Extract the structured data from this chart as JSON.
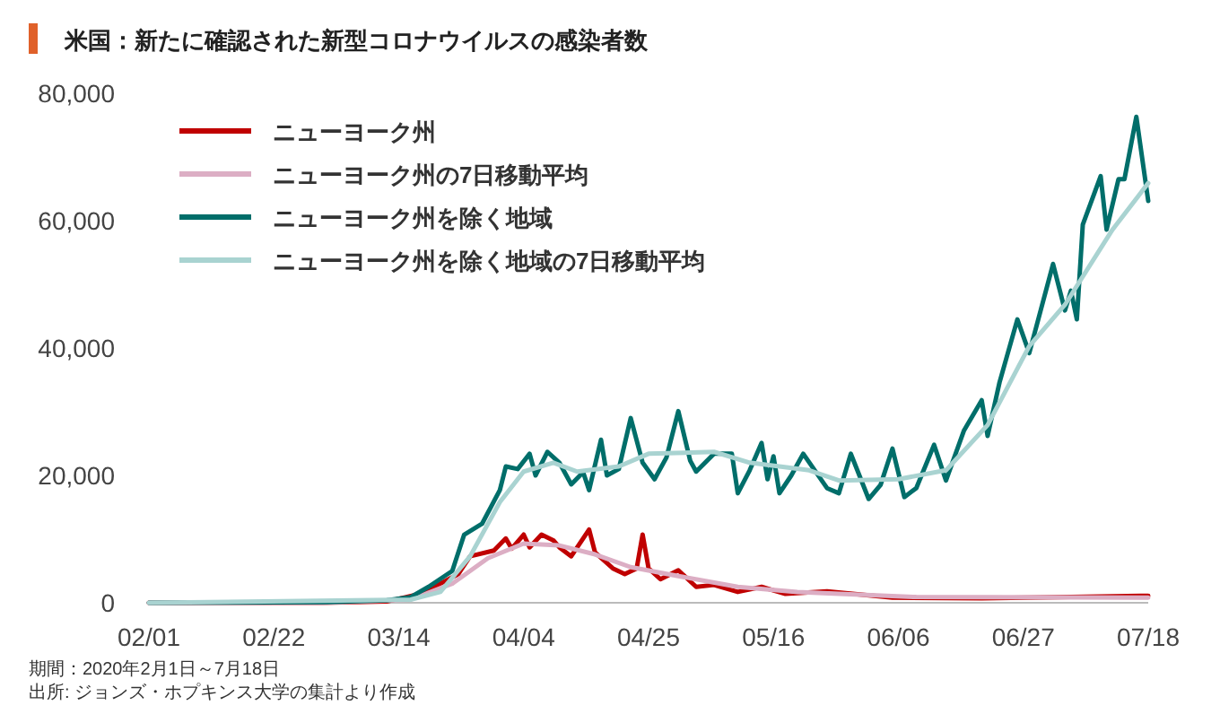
{
  "chart_data": {
    "type": "line",
    "title": "米国：新たに確認された新型コロナウイルスの感染者数",
    "annotations": [
      "期間：2020年2月1日～7月18日",
      "出所: ジョンズ・ホプキンス大学の集計より作成"
    ],
    "xlim": [
      "2020-02-01",
      "2020-07-18"
    ],
    "xticks": [
      {
        "value": "2020-02-01",
        "label": "02/01"
      },
      {
        "value": "2020-02-22",
        "label": "02/22"
      },
      {
        "value": "2020-03-14",
        "label": "03/14"
      },
      {
        "value": "2020-04-04",
        "label": "04/04"
      },
      {
        "value": "2020-04-25",
        "label": "04/25"
      },
      {
        "value": "2020-05-16",
        "label": "05/16"
      },
      {
        "value": "2020-06-06",
        "label": "06/06"
      },
      {
        "value": "2020-06-27",
        "label": "06/27"
      },
      {
        "value": "2020-07-18",
        "label": "07/18"
      }
    ],
    "ylim": [
      0,
      80000
    ],
    "yticks": [
      0,
      {
        "value": 20000,
        "label": "20,000"
      },
      {
        "value": 40000,
        "label": "40,000"
      },
      {
        "value": 60000,
        "label": "60,000"
      },
      {
        "value": 80000,
        "label": "80,000"
      }
    ],
    "grid": false,
    "legend": "top left",
    "marker": "none",
    "line_style": "solid",
    "series": [
      {
        "name": "ニューヨーク州",
        "color": "#c00000",
        "x": [
          "2020-02-01",
          "2020-03-01",
          "2020-03-12",
          "2020-03-18",
          "2020-03-24",
          "2020-03-26",
          "2020-03-30",
          "2020-04-01",
          "2020-04-02",
          "2020-04-04",
          "2020-04-05",
          "2020-04-07",
          "2020-04-09",
          "2020-04-10",
          "2020-04-12",
          "2020-04-15",
          "2020-04-16",
          "2020-04-19",
          "2020-04-21",
          "2020-04-23",
          "2020-04-24",
          "2020-04-25",
          "2020-04-27",
          "2020-04-30",
          "2020-05-03",
          "2020-05-06",
          "2020-05-10",
          "2020-05-14",
          "2020-05-18",
          "2020-05-25",
          "2020-06-05",
          "2020-06-20",
          "2020-07-05",
          "2020-07-18"
        ],
        "values": [
          0,
          0,
          200,
          1500,
          4500,
          7300,
          8200,
          10100,
          8500,
          10700,
          8700,
          10700,
          9800,
          8700,
          7300,
          11500,
          7900,
          5400,
          4500,
          5400,
          10700,
          5400,
          3700,
          5100,
          2500,
          2800,
          1700,
          2500,
          1400,
          1800,
          800,
          700,
          900,
          1100
        ]
      },
      {
        "name": "ニューヨーク州の7日移動平均",
        "color": "#dcaec4",
        "x": [
          "2020-02-01",
          "2020-03-01",
          "2020-03-16",
          "2020-03-23",
          "2020-03-29",
          "2020-04-04",
          "2020-04-10",
          "2020-04-16",
          "2020-04-22",
          "2020-04-30",
          "2020-05-10",
          "2020-05-20",
          "2020-06-09",
          "2020-07-18"
        ],
        "values": [
          0,
          0,
          500,
          3000,
          7000,
          9300,
          9000,
          7600,
          5600,
          4200,
          2500,
          1700,
          900,
          800
        ]
      },
      {
        "name": "ニューヨーク州を除く地域",
        "color": "#006e6a",
        "x": [
          "2020-02-01",
          "2020-03-02",
          "2020-03-12",
          "2020-03-16",
          "2020-03-19",
          "2020-03-23",
          "2020-03-25",
          "2020-03-28",
          "2020-03-31",
          "2020-04-01",
          "2020-04-03",
          "2020-04-05",
          "2020-04-06",
          "2020-04-08",
          "2020-04-10",
          "2020-04-12",
          "2020-04-14",
          "2020-04-15",
          "2020-04-17",
          "2020-04-18",
          "2020-04-20",
          "2020-04-22",
          "2020-04-24",
          "2020-04-26",
          "2020-04-28",
          "2020-04-30",
          "2020-05-02",
          "2020-05-03",
          "2020-05-06",
          "2020-05-09",
          "2020-05-10",
          "2020-05-12",
          "2020-05-14",
          "2020-05-15",
          "2020-05-16",
          "2020-05-17",
          "2020-05-19",
          "2020-05-21",
          "2020-05-25",
          "2020-05-27",
          "2020-05-29",
          "2020-06-01",
          "2020-06-03",
          "2020-06-05",
          "2020-06-07",
          "2020-06-09",
          "2020-06-12",
          "2020-06-14",
          "2020-06-17",
          "2020-06-20",
          "2020-06-21",
          "2020-06-23",
          "2020-06-26",
          "2020-06-28",
          "2020-07-02",
          "2020-07-04",
          "2020-07-05",
          "2020-07-06",
          "2020-07-07",
          "2020-07-10",
          "2020-07-11",
          "2020-07-13",
          "2020-07-14",
          "2020-07-16",
          "2020-07-18"
        ],
        "values": [
          0,
          100,
          400,
          900,
          2500,
          5000,
          10700,
          12400,
          17700,
          21400,
          21000,
          23400,
          20000,
          23700,
          22000,
          18600,
          20500,
          17700,
          25600,
          20000,
          21000,
          29000,
          22000,
          19400,
          22800,
          30100,
          22300,
          20600,
          23400,
          23400,
          17200,
          20800,
          25100,
          19400,
          23000,
          17200,
          20000,
          23400,
          18000,
          17200,
          23400,
          16300,
          18500,
          24200,
          16600,
          18000,
          24800,
          19200,
          27000,
          31800,
          26200,
          34600,
          44500,
          39200,
          53200,
          45900,
          49000,
          44500,
          59400,
          67000,
          58600,
          66500,
          66500,
          76300,
          63100
        ]
      },
      {
        "name": "ニューヨーク州を除く地域の7日移動平均",
        "color": "#a9d3d1",
        "x": [
          "2020-02-01",
          "2020-03-16",
          "2020-03-21",
          "2020-03-26",
          "2020-03-31",
          "2020-04-04",
          "2020-04-09",
          "2020-04-13",
          "2020-04-20",
          "2020-04-25",
          "2020-05-06",
          "2020-05-12",
          "2020-05-22",
          "2020-05-27",
          "2020-06-06",
          "2020-06-14",
          "2020-06-21",
          "2020-06-28",
          "2020-07-04",
          "2020-07-12",
          "2020-07-18"
        ],
        "values": [
          0,
          500,
          1700,
          7300,
          15800,
          20600,
          22000,
          20600,
          21400,
          23400,
          23700,
          22000,
          20800,
          19200,
          19400,
          20800,
          27900,
          40300,
          46800,
          58600,
          65900
        ]
      }
    ]
  }
}
